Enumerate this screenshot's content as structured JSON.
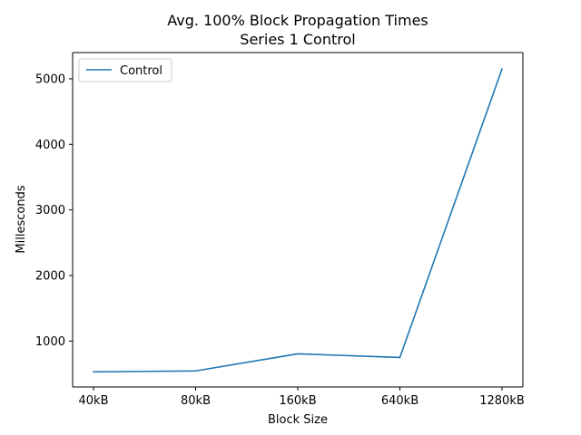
{
  "chart_data": {
    "type": "line",
    "title": "Avg. 100% Block Propagation Times",
    "subtitle": "Series 1 Control",
    "xlabel": "Block Size",
    "ylabel": "Millesconds",
    "categories": [
      "40kB",
      "80kB",
      "160kB",
      "640kB",
      "1280kB"
    ],
    "series": [
      {
        "name": "Control",
        "values": [
          530,
          545,
          805,
          750,
          5150
        ],
        "color": "#1f77b4"
      }
    ],
    "ylim": [
      300,
      5400
    ],
    "yticks": [
      1000,
      2000,
      3000,
      4000,
      5000
    ],
    "legend": "top-left",
    "grid": false
  }
}
